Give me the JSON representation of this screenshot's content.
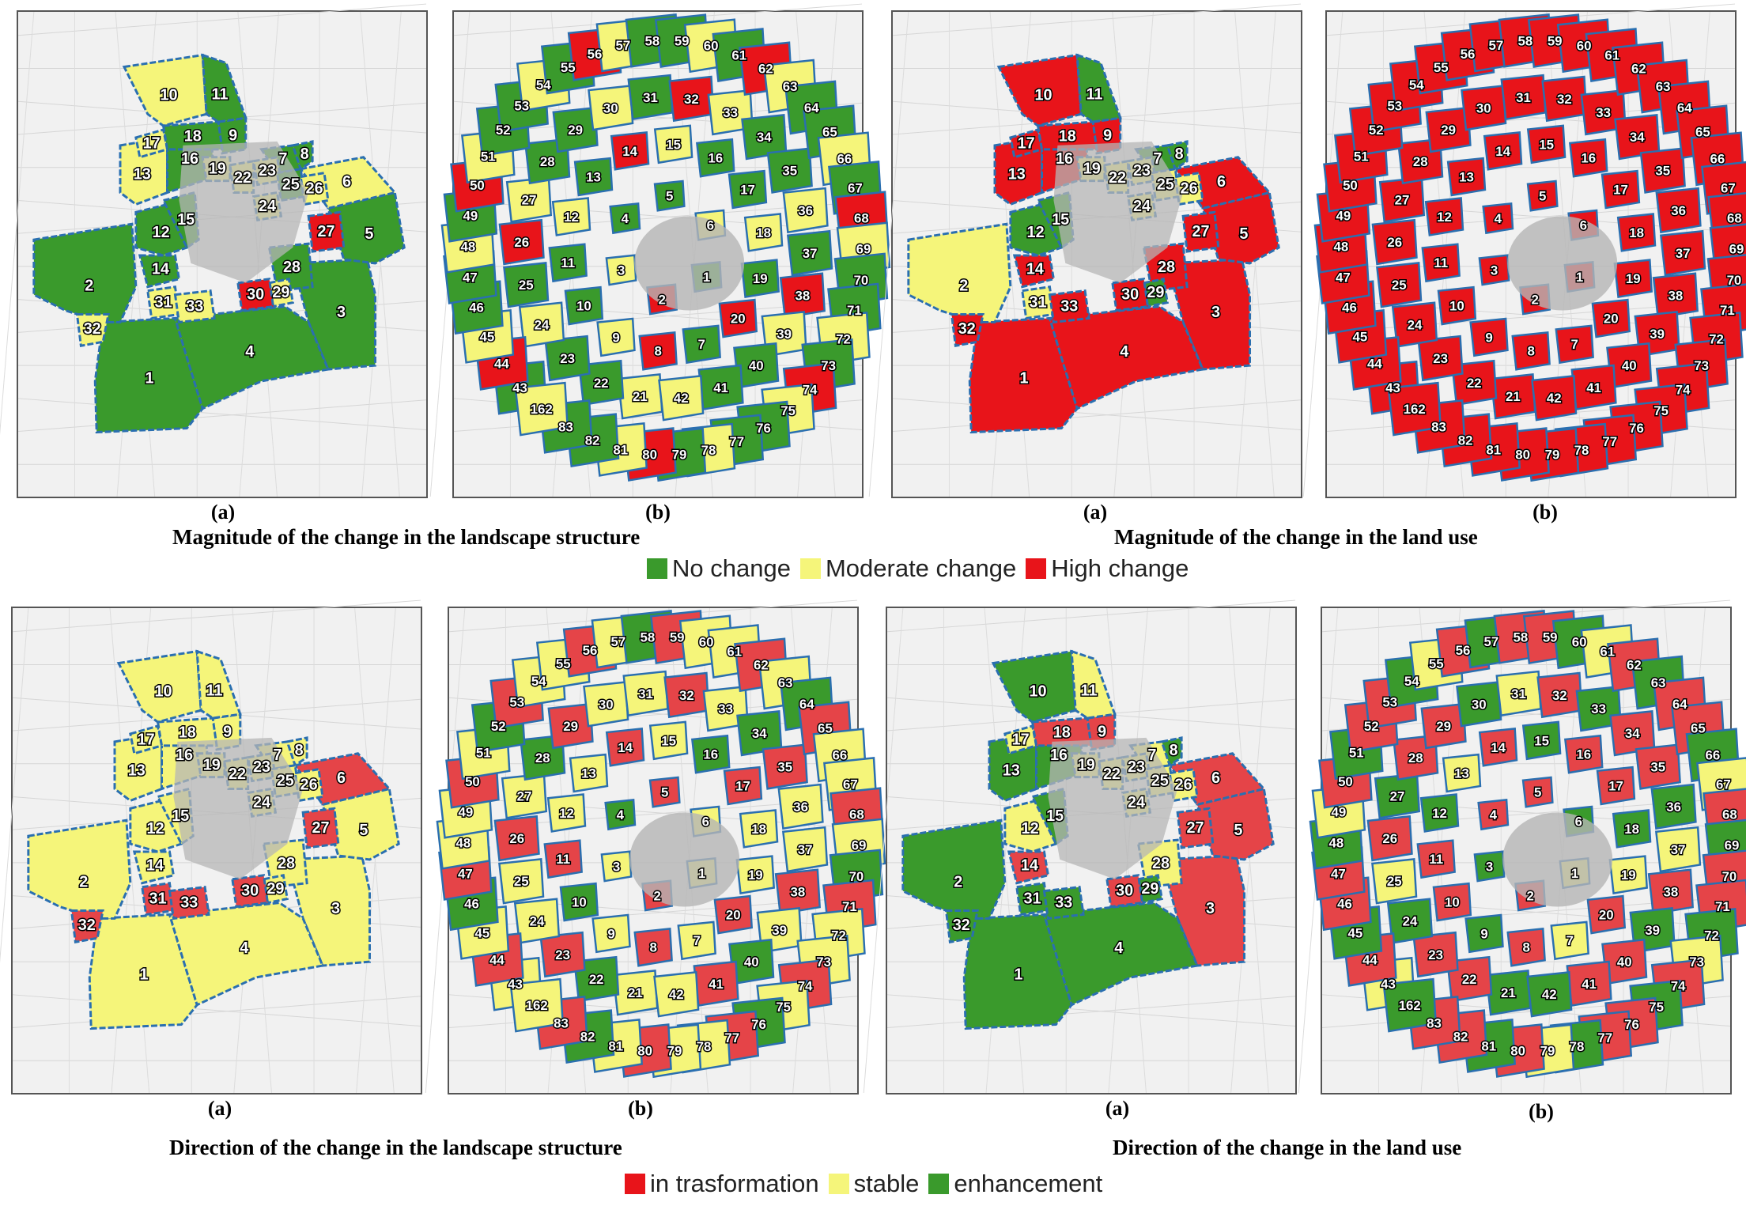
{
  "colors": {
    "green": "#3a9a2c",
    "yellow": "#f5f57a",
    "red": "#e8141a",
    "red_bottom": "#e54448",
    "boundary": "#2a6fb0",
    "urban": "#b5b5b5",
    "background": "#f1f1f1"
  },
  "panels": [
    {
      "label": "(a)",
      "set": "A",
      "colors": "magA"
    },
    {
      "label": "(b)",
      "set": "B",
      "colors": "magB"
    },
    {
      "label": "(a)",
      "set": "A",
      "colors": "magC"
    },
    {
      "label": "(b)",
      "set": "B",
      "colors": "magD"
    },
    {
      "label": "(a)",
      "set": "A",
      "colors": "dirA"
    },
    {
      "label": "(b)",
      "set": "B",
      "colors": "dirB"
    },
    {
      "label": "(a)",
      "set": "A",
      "colors": "dirC"
    },
    {
      "label": "(b)",
      "set": "B",
      "colors": "dirD"
    }
  ],
  "captions": {
    "top_left": "Magnitude of the change in the landscape structure",
    "top_right": "Magnitude of the change in the land use",
    "bottom_left": "Direction of the change in the landscape structure",
    "bottom_right": "Direction of the change in the land use"
  },
  "legend_top": [
    {
      "label": "No change",
      "color": "#3a9a2c"
    },
    {
      "label": "Moderate change",
      "color": "#f5f57a"
    },
    {
      "label": "High change",
      "color": "#e8141a"
    }
  ],
  "legend_bottom": [
    {
      "label": "in trasformation",
      "color": "#e8141a"
    },
    {
      "label": "stable",
      "color": "#f5f57a"
    },
    {
      "label": "enhancement",
      "color": "#3a9a2c"
    }
  ],
  "zone_labels_a": [
    "1",
    "2",
    "3",
    "4",
    "5",
    "6",
    "7",
    "8",
    "9",
    "10",
    "11",
    "12",
    "13",
    "14",
    "15",
    "16",
    "17",
    "18",
    "19",
    "22",
    "23",
    "24",
    "25",
    "26",
    "27",
    "28",
    "29",
    "30",
    "31",
    "32",
    "33"
  ],
  "zone_labels_b": [
    "1",
    "2",
    "3",
    "4",
    "5",
    "6",
    "7",
    "8",
    "9",
    "10",
    "11",
    "12",
    "13",
    "14",
    "15",
    "16",
    "17",
    "18",
    "19",
    "20",
    "21",
    "22",
    "23",
    "24",
    "25",
    "26",
    "27",
    "28",
    "29",
    "30",
    "31",
    "32",
    "33",
    "34",
    "35",
    "36",
    "37",
    "38",
    "39",
    "40",
    "41",
    "42",
    "43",
    "44",
    "45",
    "46",
    "47",
    "48",
    "49",
    "50",
    "51",
    "52",
    "53",
    "54",
    "55",
    "56",
    "57",
    "58",
    "59",
    "60",
    "61",
    "62",
    "63",
    "64",
    "65",
    "66",
    "67",
    "68",
    "69",
    "70",
    "71",
    "72",
    "73",
    "74",
    "75",
    "76",
    "77",
    "78",
    "79",
    "80",
    "81",
    "82",
    "83",
    "162"
  ]
}
